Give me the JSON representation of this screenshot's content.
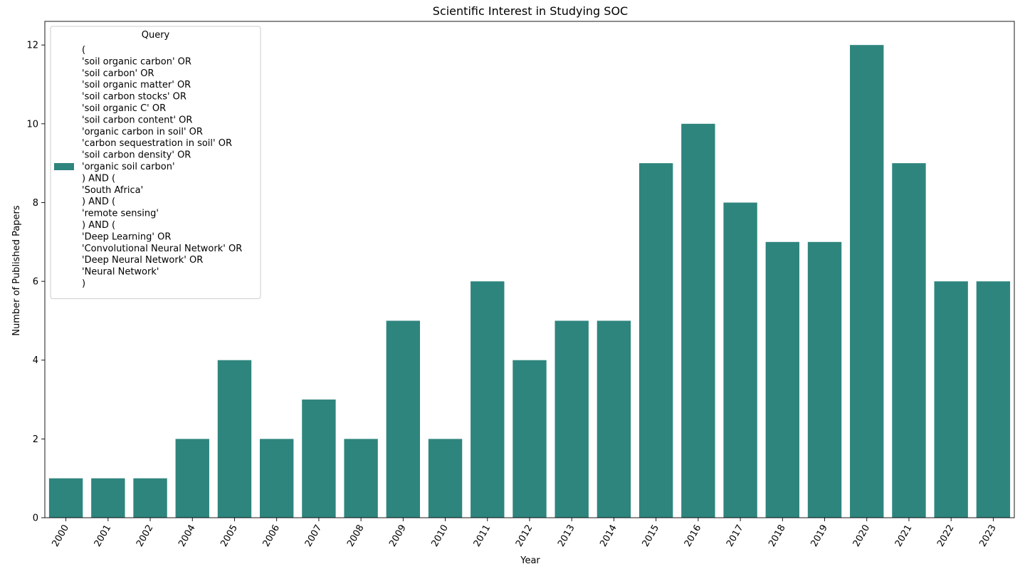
{
  "chart_data": {
    "type": "bar",
    "title": "Scientific Interest in Studying SOC",
    "xlabel": "Year",
    "ylabel": "Number of Published Papers",
    "categories": [
      "2000",
      "2001",
      "2002",
      "2004",
      "2005",
      "2006",
      "2007",
      "2008",
      "2009",
      "2010",
      "2011",
      "2012",
      "2013",
      "2014",
      "2015",
      "2016",
      "2017",
      "2018",
      "2019",
      "2020",
      "2021",
      "2022",
      "2023"
    ],
    "series": [
      {
        "name_lines": [
          "(",
          "'soil organic carbon' OR",
          "'soil carbon' OR",
          "'soil organic matter' OR",
          "'soil carbon stocks' OR",
          "'soil organic C' OR",
          "'soil carbon content' OR",
          "'organic carbon in soil' OR",
          "'carbon sequestration in soil' OR",
          "'soil carbon density' OR",
          "'organic soil carbon'",
          ") AND (",
          "'South Africa'",
          ") AND (",
          "'remote sensing'",
          ") AND (",
          "'Deep Learning' OR",
          "'Convolutional Neural Network' OR",
          "'Deep Neural Network' OR",
          "'Neural Network'",
          ")"
        ],
        "values": [
          1,
          1,
          1,
          2,
          4,
          2,
          3,
          2,
          5,
          2,
          6,
          4,
          5,
          5,
          9,
          10,
          8,
          7,
          7,
          12,
          9,
          6,
          6
        ],
        "color": "#2e857e"
      }
    ],
    "ylim": [
      0,
      12.6
    ],
    "yticks": [
      0,
      2,
      4,
      6,
      8,
      10,
      12
    ],
    "legend": {
      "title": "Query",
      "placement": "top-left"
    },
    "grid": false
  }
}
